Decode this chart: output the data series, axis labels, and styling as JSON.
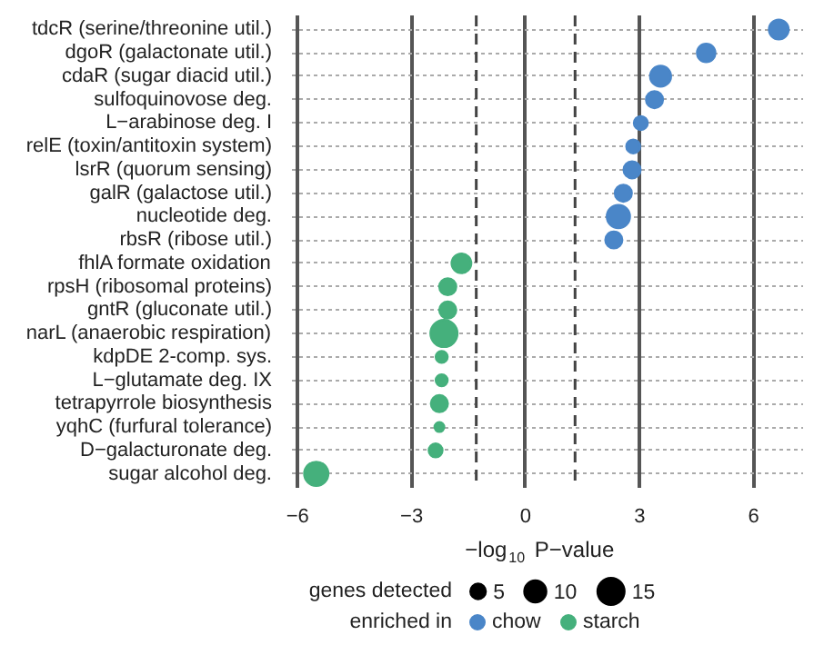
{
  "chart_data": {
    "type": "bubble",
    "categories": [
      "tdcR (serine/threonine util.)",
      "dgoR (galactonate util.)",
      "cdaR (sugar diacid util.)",
      "sulfoquinovose deg.",
      "L−arabinose deg. I",
      "relE (toxin/antitoxin system)",
      "lsrR (quorum sensing)",
      "galR (galactose util.)",
      "nucleotide deg.",
      "rbsR (ribose util.)",
      "fhlA formate oxidation",
      "rpsH (ribosomal proteins)",
      "gntR (gluconate util.)",
      "narL (anaerobic respiration)",
      "kdpDE 2-comp. sys.",
      "L−glutamate deg. IX",
      "tetrapyrrole biosynthesis",
      "yqhC (furfural tolerance)",
      "D−galacturonate deg.",
      "sugar alcohol deg."
    ],
    "orientation": "horizontal",
    "series": [
      {
        "name": "chow",
        "color": "#4a86c8",
        "values": [
          6.66,
          4.75,
          3.55,
          3.39,
          3.03,
          2.83,
          2.8,
          2.57,
          2.44,
          2.32,
          null,
          null,
          null,
          null,
          null,
          null,
          null,
          null,
          null,
          null
        ],
        "sizes": [
          8,
          7,
          9,
          6,
          4,
          4,
          6,
          6,
          11,
          6,
          null,
          null,
          null,
          null,
          null,
          null,
          null,
          null,
          null,
          null
        ]
      },
      {
        "name": "starch",
        "color": "#45b07c",
        "values": [
          null,
          null,
          null,
          null,
          null,
          null,
          null,
          null,
          null,
          null,
          -1.69,
          -2.05,
          -2.05,
          -2.15,
          -2.21,
          -2.21,
          -2.27,
          -2.27,
          -2.37,
          -5.51
        ],
        "sizes": [
          null,
          null,
          null,
          null,
          null,
          null,
          null,
          null,
          null,
          null,
          8,
          6,
          6,
          15,
          3,
          3,
          6,
          2,
          4,
          12
        ]
      }
    ],
    "size_legend": [
      {
        "value": 5,
        "label": "5"
      },
      {
        "value": 10,
        "label": "10"
      },
      {
        "value": 15,
        "label": "15"
      }
    ],
    "xlim": [
      -6.15,
      7.3
    ],
    "xticks": [
      -6,
      -3,
      0,
      3,
      6
    ],
    "xlabel": "−log$_{10}$ P−value",
    "legend_title": "enriched in",
    "annotations": [
      "genes detected"
    ],
    "ref_lines": [
      {
        "axis": "x",
        "value": -1.3,
        "line_style": "dashed"
      },
      {
        "axis": "x",
        "value": 1.3,
        "line_style": "dashed"
      }
    ],
    "grid": true,
    "legend": "bottom"
  }
}
